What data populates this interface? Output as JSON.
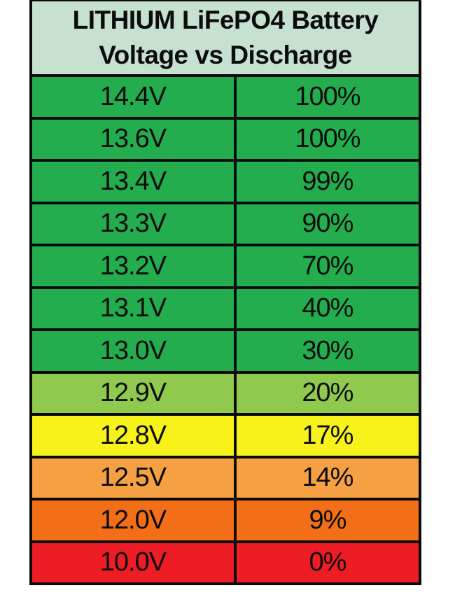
{
  "table": {
    "title_line1": "LITHIUM LiFePO4 Battery",
    "title_line2": "Voltage vs Discharge",
    "header_bg": "#c6e1d0",
    "border_color": "#0b0b0b",
    "rows": [
      {
        "voltage": "14.4V",
        "discharge": "100%",
        "color": "#23ad4e"
      },
      {
        "voltage": "13.6V",
        "discharge": "100%",
        "color": "#23ad4e"
      },
      {
        "voltage": "13.4V",
        "discharge": "99%",
        "color": "#23ad4e"
      },
      {
        "voltage": "13.3V",
        "discharge": "90%",
        "color": "#23ad4e"
      },
      {
        "voltage": "13.2V",
        "discharge": "70%",
        "color": "#23ad4e"
      },
      {
        "voltage": "13.1V",
        "discharge": "40%",
        "color": "#23ad4e"
      },
      {
        "voltage": "13.0V",
        "discharge": "30%",
        "color": "#23ad4e"
      },
      {
        "voltage": "12.9V",
        "discharge": "20%",
        "color": "#8fc94e"
      },
      {
        "voltage": "12.8V",
        "discharge": "17%",
        "color": "#f8f21b"
      },
      {
        "voltage": "12.5V",
        "discharge": "14%",
        "color": "#f5a143"
      },
      {
        "voltage": "12.0V",
        "discharge": "9%",
        "color": "#f36f17"
      },
      {
        "voltage": "10.0V",
        "discharge": "0%",
        "color": "#ee1c24"
      }
    ]
  },
  "chart_data": {
    "type": "table",
    "title": "LITHIUM LiFePO4 Battery Voltage vs Discharge",
    "columns": [
      "Voltage",
      "Discharge"
    ],
    "rows": [
      [
        "14.4V",
        "100%"
      ],
      [
        "13.6V",
        "100%"
      ],
      [
        "13.4V",
        "99%"
      ],
      [
        "13.3V",
        "90%"
      ],
      [
        "13.2V",
        "70%"
      ],
      [
        "13.1V",
        "40%"
      ],
      [
        "13.0V",
        "30%"
      ],
      [
        "12.9V",
        "20%"
      ],
      [
        "12.8V",
        "17%"
      ],
      [
        "12.5V",
        "14%"
      ],
      [
        "12.0V",
        "9%"
      ],
      [
        "10.0V",
        "0%"
      ]
    ],
    "voltage_values": [
      14.4,
      13.6,
      13.4,
      13.3,
      13.2,
      13.1,
      13.0,
      12.9,
      12.8,
      12.5,
      12.0,
      10.0
    ],
    "discharge_percent": [
      100,
      100,
      99,
      90,
      70,
      40,
      30,
      20,
      17,
      14,
      9,
      0
    ],
    "row_colors": [
      "#23ad4e",
      "#23ad4e",
      "#23ad4e",
      "#23ad4e",
      "#23ad4e",
      "#23ad4e",
      "#23ad4e",
      "#8fc94e",
      "#f8f21b",
      "#f5a143",
      "#f36f17",
      "#ee1c24"
    ],
    "legend_position": "none",
    "grid": true
  }
}
